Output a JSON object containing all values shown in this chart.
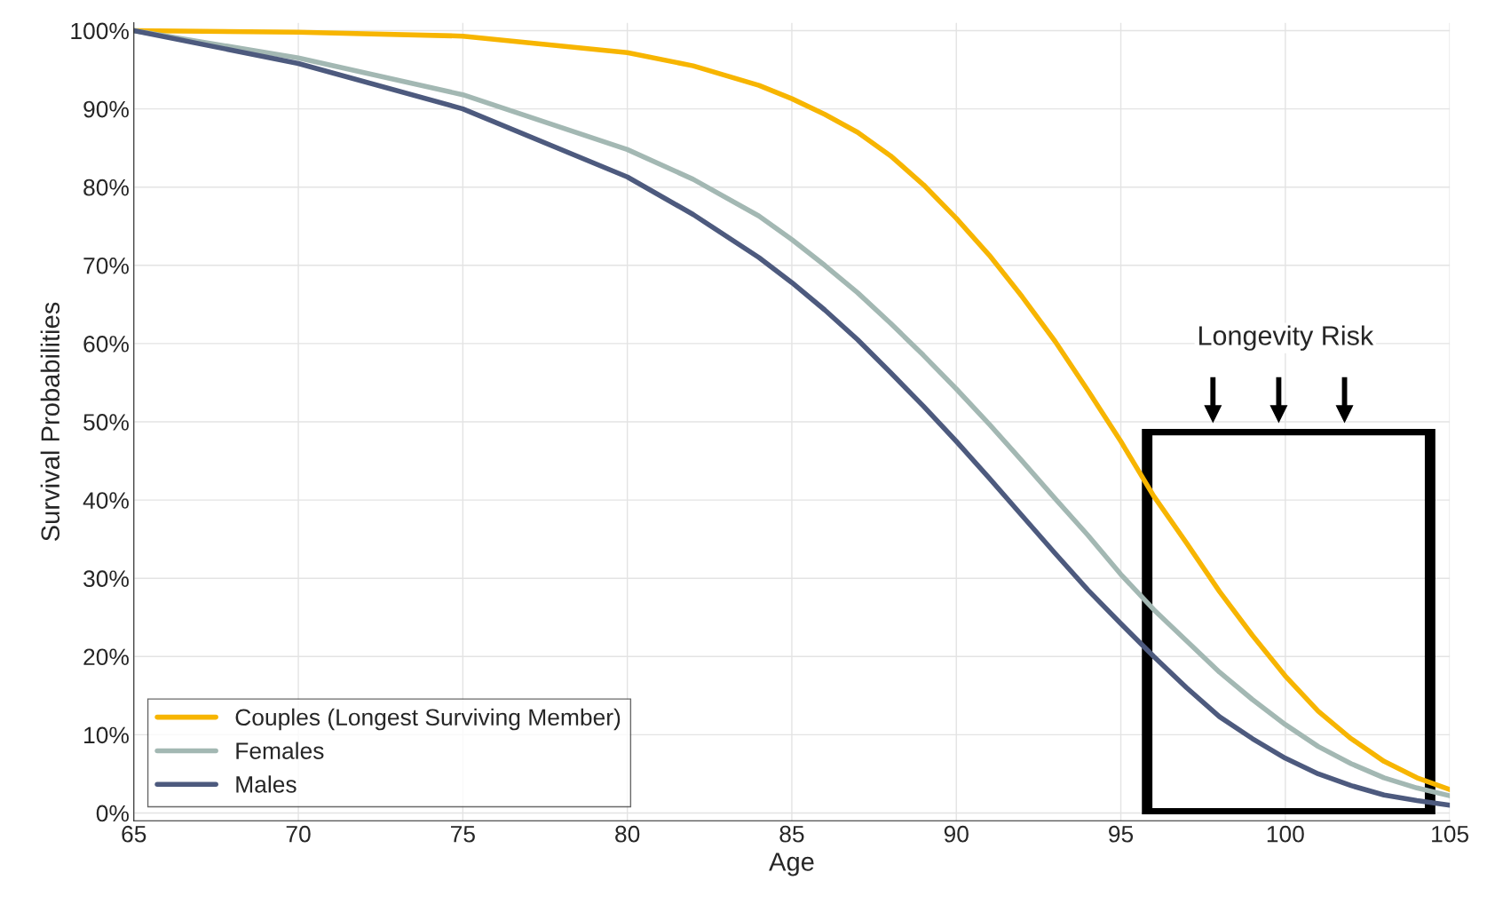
{
  "chart_data": {
    "type": "line",
    "xlabel": "Age",
    "ylabel": "Survival Probabilities",
    "x": [
      65,
      70,
      75,
      80,
      82,
      84,
      85,
      86,
      87,
      88,
      89,
      90,
      91,
      92,
      93,
      94,
      95,
      96,
      97,
      98,
      99,
      100,
      101,
      102,
      103,
      104,
      105
    ],
    "series": [
      {
        "name": "Couples (Longest Surviving Member)",
        "color": "#f7b500",
        "values": [
          100,
          99.8,
          99.3,
          97.2,
          95.5,
          93,
          91.3,
          89.3,
          87,
          84,
          80.3,
          76,
          71.3,
          66,
          60.3,
          54,
          47.5,
          40.5,
          34.5,
          28.3,
          22.7,
          17.5,
          13,
          9.5,
          6.6,
          4.5,
          3
        ]
      },
      {
        "name": "Females",
        "color": "#a3b8b3",
        "values": [
          100,
          96.5,
          91.8,
          84.8,
          81,
          76.3,
          73.3,
          70,
          66.5,
          62.6,
          58.5,
          54.2,
          49.7,
          45,
          40.2,
          35.5,
          30.5,
          26,
          22,
          18,
          14.5,
          11.3,
          8.5,
          6.3,
          4.5,
          3.2,
          2.2
        ]
      },
      {
        "name": "Males",
        "color": "#4d5a7e",
        "values": [
          100,
          95.8,
          90,
          81.3,
          76.5,
          71,
          67.8,
          64.3,
          60.5,
          56.3,
          52,
          47.5,
          42.8,
          38,
          33.2,
          28.5,
          24.2,
          20,
          16,
          12.3,
          9.5,
          7,
          5,
          3.5,
          2.3,
          1.6,
          1
        ]
      }
    ],
    "xlim": [
      65,
      105
    ],
    "xticks": [
      65,
      70,
      75,
      80,
      85,
      90,
      95,
      100,
      105
    ],
    "ylim": [
      -1,
      101
    ],
    "yticks": [
      {
        "value": 0,
        "label": "0%"
      },
      {
        "value": 10,
        "label": "10%"
      },
      {
        "value": 20,
        "label": "20%"
      },
      {
        "value": 30,
        "label": "30%"
      },
      {
        "value": 40,
        "label": "40%"
      },
      {
        "value": 50,
        "label": "50%"
      },
      {
        "value": 60,
        "label": "60%"
      },
      {
        "value": 70,
        "label": "70%"
      },
      {
        "value": 80,
        "label": "80%"
      },
      {
        "value": 90,
        "label": "90%"
      },
      {
        "value": 100,
        "label": "100%"
      }
    ],
    "annotations": [
      "Longevity Risk"
    ],
    "grid": true,
    "legend": "bottom left",
    "line_style": "solid",
    "marker": "none"
  }
}
